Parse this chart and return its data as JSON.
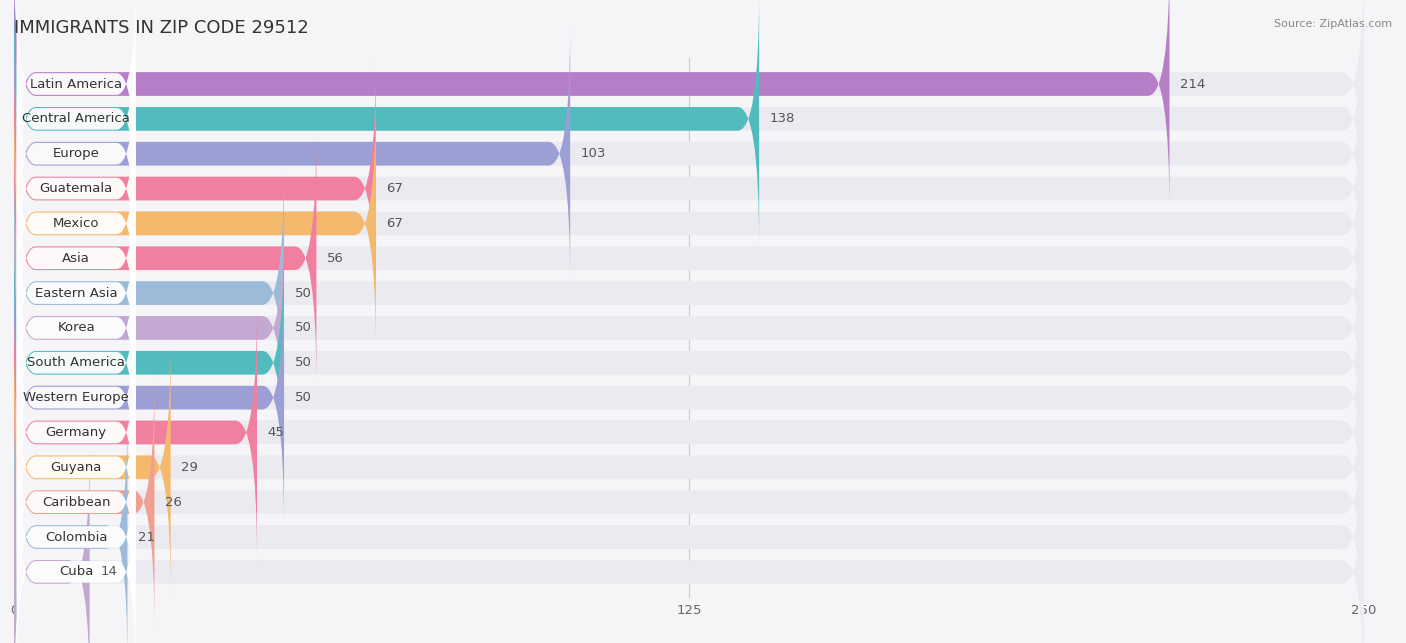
{
  "title": "IMMIGRANTS IN ZIP CODE 29512",
  "source": "Source: ZipAtlas.com",
  "categories": [
    "Latin America",
    "Central America",
    "Europe",
    "Guatemala",
    "Mexico",
    "Asia",
    "Eastern Asia",
    "Korea",
    "South America",
    "Western Europe",
    "Germany",
    "Guyana",
    "Caribbean",
    "Colombia",
    "Cuba"
  ],
  "values": [
    214,
    138,
    103,
    67,
    67,
    56,
    50,
    50,
    50,
    50,
    45,
    29,
    26,
    21,
    14
  ],
  "bar_colors": [
    "#b57ec7",
    "#52bbbe",
    "#9b9fd4",
    "#f07fa0",
    "#f5b96e",
    "#f07fa0",
    "#9bbbd8",
    "#c3a8d1",
    "#52bbbe",
    "#9b9fd4",
    "#f07fa0",
    "#f5b96e",
    "#f0a090",
    "#9bbbd8",
    "#c3a8d1"
  ],
  "bg_color": "#f5f5f8",
  "bar_bg_color": "#eaeaf0",
  "xlim": [
    0,
    250
  ],
  "xticks": [
    0,
    125,
    250
  ],
  "title_fontsize": 13,
  "label_fontsize": 9.5,
  "value_fontsize": 9.5
}
